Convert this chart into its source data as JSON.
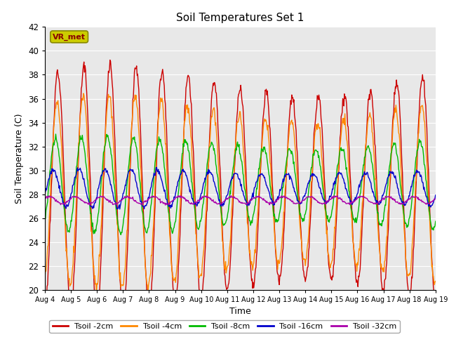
{
  "title": "Soil Temperatures Set 1",
  "xlabel": "Time",
  "ylabel": "Soil Temperature (C)",
  "ylim": [
    20,
    42
  ],
  "yticks": [
    20,
    22,
    24,
    26,
    28,
    30,
    32,
    34,
    36,
    38,
    40,
    42
  ],
  "xlim": [
    4,
    19
  ],
  "x_tick_labels": [
    "Aug 4",
    "Aug 5",
    "Aug 6",
    "Aug 7",
    "Aug 8",
    "Aug 9",
    "Aug 10",
    "Aug 11",
    "Aug 12",
    "Aug 13",
    "Aug 14",
    "Aug 15",
    "Aug 16",
    "Aug 17",
    "Aug 18",
    "Aug 19"
  ],
  "colors": {
    "Tsoil -2cm": "#cc0000",
    "Tsoil -4cm": "#ff8800",
    "Tsoil -8cm": "#00bb00",
    "Tsoil -16cm": "#0000cc",
    "Tsoil -32cm": "#aa00aa"
  },
  "background_color": "#e8e8e8",
  "grid_color": "#ffffff",
  "legend_label": "VR_met",
  "annotation_box_facecolor": "#cccc00",
  "annotation_box_edgecolor": "#888800",
  "annotation_text_color": "#880000",
  "mean_2cm": 28.5,
  "amp_2cm": 9.0,
  "mean_4cm": 28.2,
  "amp_4cm": 7.0,
  "mean_8cm": 28.8,
  "amp_8cm": 3.5,
  "mean_16cm": 28.5,
  "amp_16cm": 1.4,
  "mean_32cm": 27.5,
  "amp_32cm": 0.3,
  "phase_2cm": -1.5707963,
  "phase_4cm": -1.3707963,
  "phase_8cm": -0.9707963,
  "phase_16cm": -0.3707963,
  "phase_32cm": 0.5,
  "n_days": 15,
  "pts_per_day": 48,
  "seed": 12
}
